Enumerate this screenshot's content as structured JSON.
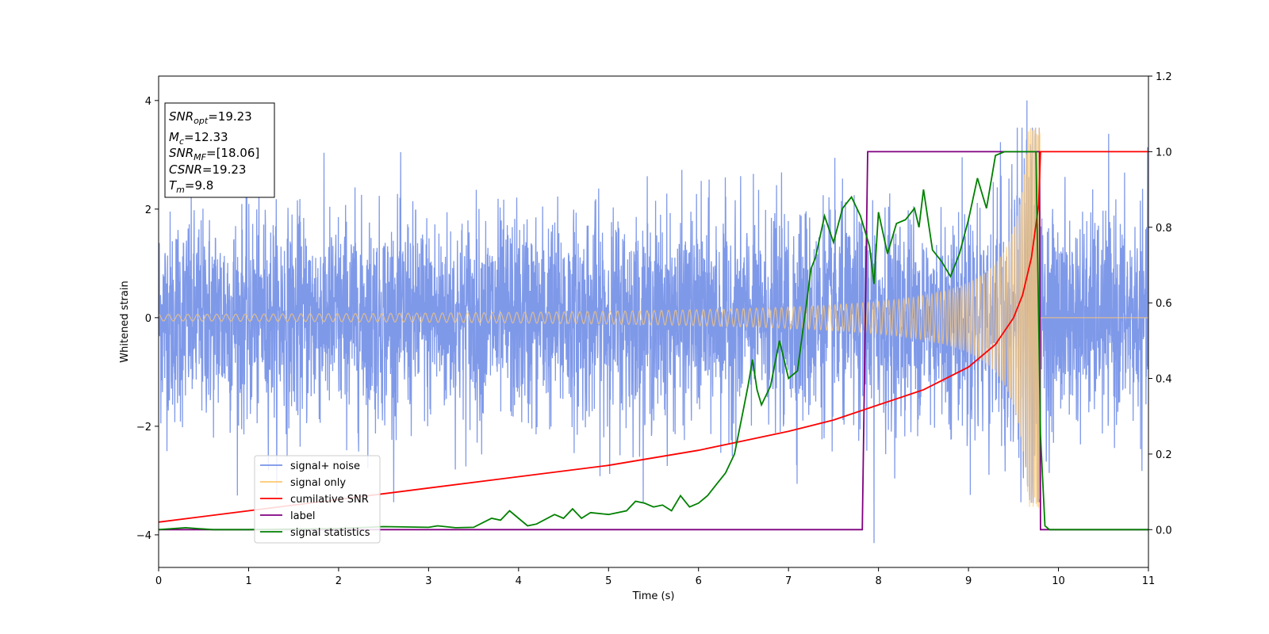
{
  "chart_data": {
    "type": "line",
    "xlabel": "Time (s)",
    "ylabel": "Whitened strain",
    "xlim": [
      0,
      11
    ],
    "ylim": [
      -4.6,
      4.45
    ],
    "ylim_right": [
      -0.1,
      1.2
    ],
    "xticks": [
      "0",
      "1",
      "2",
      "3",
      "4",
      "5",
      "6",
      "7",
      "8",
      "9",
      "10",
      "11"
    ],
    "yticks_left": [
      "−4",
      "−2",
      "0",
      "2",
      "4"
    ],
    "yticks_right": [
      "0.0",
      "0.2",
      "0.4",
      "0.6",
      "0.8",
      "1.0",
      "1.2"
    ],
    "grid": false,
    "legend_position": "lower-left",
    "info_box": {
      "snr_opt": "19.23",
      "mc": "12.33",
      "snr_mf": "[18.06]",
      "csnr": "19.23",
      "tm": "9.8"
    },
    "series": [
      {
        "name": "signal+ noise",
        "axis": "left",
        "color": "#7893e8",
        "description_values": {
          "noise_std": 1.0,
          "typical_min": -3.3,
          "typical_max": 3.5,
          "spike_at_9.65": 4.0,
          "dip_at_7.95": -4.15
        }
      },
      {
        "name": "signal only",
        "axis": "left",
        "color": "#fdc871",
        "chirp": {
          "start_amplitude": 0.06,
          "merger_time": 9.8,
          "peak_amplitude": 3.5,
          "end_time": 9.8
        }
      },
      {
        "name": "cumilative SNR",
        "axis": "right",
        "color": "#ff0000",
        "x": [
          0,
          1,
          2,
          3,
          4,
          5,
          6,
          6.5,
          7,
          7.5,
          8,
          8.5,
          9,
          9.3,
          9.5,
          9.6,
          9.7,
          9.78,
          9.8,
          11
        ],
        "y": [
          0.02,
          0.05,
          0.08,
          0.11,
          0.14,
          0.17,
          0.21,
          0.235,
          0.26,
          0.29,
          0.33,
          0.37,
          0.43,
          0.49,
          0.56,
          0.62,
          0.72,
          0.86,
          1.0,
          1.0
        ]
      },
      {
        "name": "label",
        "axis": "right",
        "color": "#800080",
        "x": [
          0,
          7.82,
          7.88,
          9.79,
          9.8,
          11
        ],
        "y": [
          0.0,
          0.0,
          1.0,
          1.0,
          0.0,
          0.0
        ]
      },
      {
        "name": "signal statistics",
        "axis": "right",
        "color": "#008000",
        "x": [
          0,
          0.3,
          0.6,
          1,
          2,
          2.5,
          3,
          3.1,
          3.3,
          3.5,
          3.7,
          3.8,
          3.9,
          4.0,
          4.1,
          4.2,
          4.4,
          4.5,
          4.6,
          4.7,
          4.8,
          5.0,
          5.2,
          5.3,
          5.4,
          5.5,
          5.6,
          5.7,
          5.8,
          5.9,
          6.0,
          6.1,
          6.2,
          6.3,
          6.4,
          6.5,
          6.55,
          6.6,
          6.65,
          6.7,
          6.8,
          6.9,
          7.0,
          7.1,
          7.2,
          7.25,
          7.3,
          7.4,
          7.5,
          7.6,
          7.7,
          7.8,
          7.9,
          7.95,
          8.0,
          8.1,
          8.2,
          8.3,
          8.4,
          8.45,
          8.5,
          8.6,
          8.7,
          8.8,
          8.9,
          9.0,
          9.1,
          9.2,
          9.3,
          9.4,
          9.5,
          9.6,
          9.7,
          9.75,
          9.8,
          9.85,
          9.9,
          10,
          11
        ],
        "y": [
          0.0,
          0.005,
          0.0,
          0.0,
          0.003,
          0.008,
          0.006,
          0.01,
          0.005,
          0.006,
          0.03,
          0.025,
          0.05,
          0.03,
          0.01,
          0.015,
          0.04,
          0.03,
          0.055,
          0.03,
          0.045,
          0.04,
          0.05,
          0.075,
          0.07,
          0.06,
          0.065,
          0.05,
          0.09,
          0.06,
          0.07,
          0.09,
          0.12,
          0.15,
          0.2,
          0.32,
          0.38,
          0.45,
          0.37,
          0.33,
          0.38,
          0.5,
          0.4,
          0.42,
          0.6,
          0.69,
          0.72,
          0.83,
          0.76,
          0.85,
          0.88,
          0.83,
          0.75,
          0.65,
          0.84,
          0.73,
          0.81,
          0.82,
          0.85,
          0.8,
          0.9,
          0.74,
          0.71,
          0.67,
          0.73,
          0.82,
          0.93,
          0.85,
          0.99,
          1.0,
          1.0,
          1.0,
          1.0,
          1.0,
          0.25,
          0.01,
          0.0,
          0.0,
          0.0
        ]
      }
    ]
  }
}
